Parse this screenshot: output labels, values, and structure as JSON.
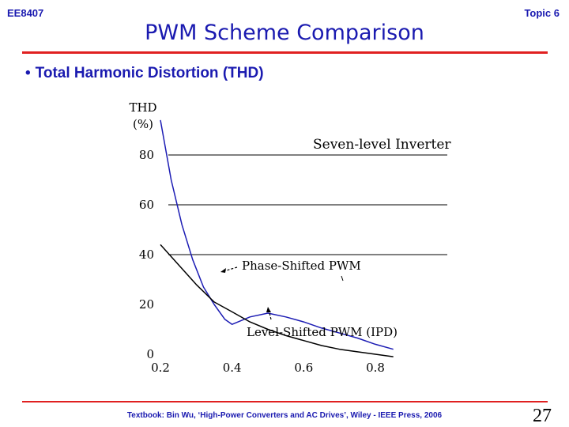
{
  "header": {
    "course_code": "EE8407",
    "topic": "Topic 6",
    "title": "PWM Scheme Comparison"
  },
  "bullet": {
    "text": "Total Harmonic Distortion (THD)"
  },
  "footer": {
    "text": "Textbook: Bin Wu, ‘High-Power Converters and AC Drives’, Wiley - IEEE Press, 2006",
    "page_number": "27"
  },
  "colors": {
    "accent": "#1a1ab0",
    "rule": "#e02020",
    "phase_shifted_line": "#1c1cb4",
    "level_shifted_line": "#000000"
  },
  "chart_data": {
    "type": "line",
    "ylabel_line1": "THD",
    "ylabel_line2": "(%)",
    "xlim": [
      0.2,
      0.8
    ],
    "ylim": [
      0,
      80
    ],
    "x_ticks": [
      0.2,
      0.4,
      0.6,
      0.8
    ],
    "x_tick_labels": [
      "0.2",
      "0.4",
      "0.6",
      "0.8"
    ],
    "y_ticks": [
      0,
      20,
      40,
      60,
      80
    ],
    "y_tick_labels": [
      "0",
      "20",
      "40",
      "60",
      "80"
    ],
    "grid": "horizontal at 40, 60, 80",
    "annotation": "Seven-level Inverter",
    "series": [
      {
        "name": "Phase-Shifted PWM",
        "color": "#1c1cb4",
        "x": [
          0.2,
          0.23,
          0.26,
          0.29,
          0.32,
          0.35,
          0.38,
          0.4,
          0.45,
          0.5,
          0.55,
          0.6,
          0.65,
          0.7,
          0.75,
          0.8,
          0.85
        ],
        "y": [
          94,
          70,
          52,
          38,
          27,
          20,
          14,
          12,
          15,
          16.5,
          15,
          13,
          10.5,
          8.5,
          6.5,
          4,
          2
        ]
      },
      {
        "name": "Level-Shifted PWM (IPD)",
        "color": "#000000",
        "x": [
          0.2,
          0.25,
          0.3,
          0.35,
          0.4,
          0.45,
          0.5,
          0.55,
          0.6,
          0.65,
          0.7,
          0.75,
          0.8,
          0.85
        ],
        "y": [
          44,
          36,
          28,
          21,
          17,
          13,
          10,
          7.5,
          5.5,
          3.5,
          2,
          1,
          0,
          -1
        ]
      }
    ]
  }
}
